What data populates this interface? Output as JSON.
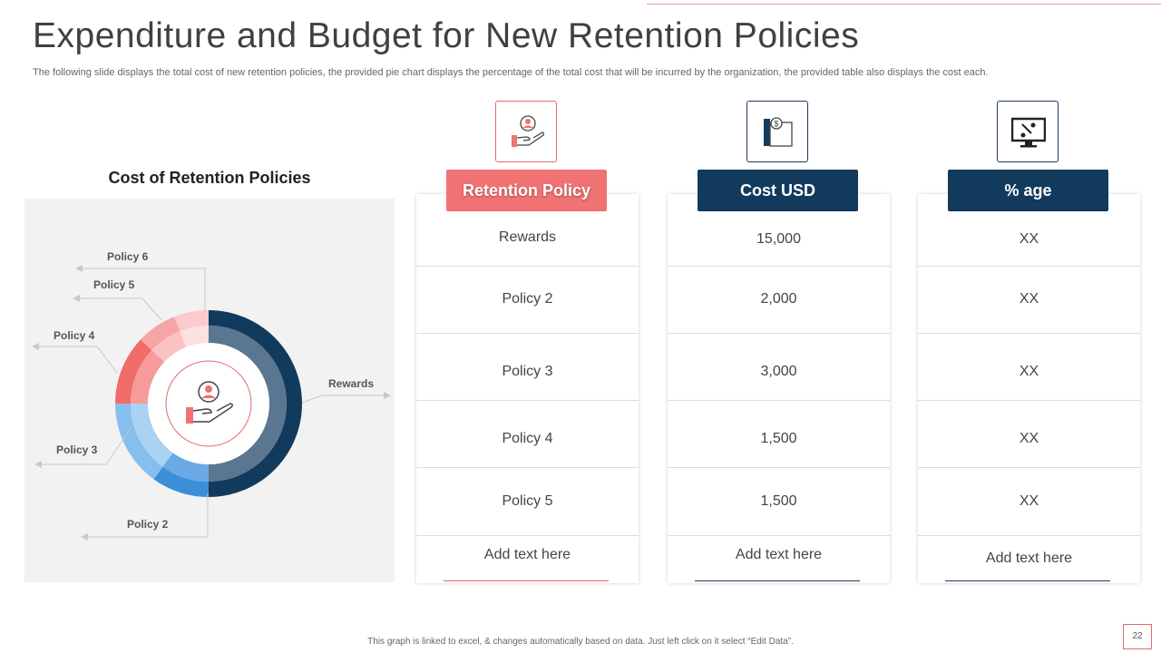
{
  "slide": {
    "title": "Expenditure and Budget for New Retention Policies",
    "subtitle": "The following slide displays the total cost of new retention policies, the provided pie chart displays the percentage of the total cost that will be incurred by the organization, the provided table also displays the cost each.",
    "footnote": "This graph is linked to excel, & changes automatically based on data. Just left click on it select “Edit Data”.",
    "page_number": "22"
  },
  "chart_data": {
    "type": "pie",
    "title": "Cost of Retention Policies",
    "center_icon": "hand-holding-person-icon",
    "slices": [
      {
        "label": "Rewards",
        "value": 50,
        "color": "#123a5d",
        "inner_color": "#5a7690"
      },
      {
        "label": "Policy 2",
        "value": 10,
        "color": "#3b8fd6",
        "inner_color": "#6aa9e6"
      },
      {
        "label": "Policy 3",
        "value": 15,
        "color": "#86bfee",
        "inner_color": "#a9d2f3"
      },
      {
        "label": "Policy 4",
        "value": 12,
        "color": "#f26b6b",
        "inner_color": "#f79a9a"
      },
      {
        "label": "Policy 5",
        "value": 7,
        "color": "#f6a5a5",
        "inner_color": "#fac2c2"
      },
      {
        "label": "Policy 6",
        "value": 6,
        "color": "#fbcaca",
        "inner_color": "#fde0e0"
      }
    ]
  },
  "table": {
    "icons": [
      "hand-holding-person-icon",
      "coin-book-icon",
      "monitor-chart-icon"
    ],
    "columns": [
      {
        "header": "Retention Policy",
        "cells": [
          "Rewards",
          "Policy 2",
          "Policy 3",
          "Policy 4",
          "Policy 5",
          "Add text here"
        ]
      },
      {
        "header": "Cost USD",
        "cells": [
          "15,000",
          "2,000",
          "3,000",
          "1,500",
          "1,500",
          "Add text here"
        ]
      },
      {
        "header": "% age",
        "cells": [
          "XX",
          "XX",
          "XX",
          "XX",
          "XX",
          "Add text here"
        ]
      }
    ]
  },
  "colors": {
    "accent_red": "#f07272",
    "navy": "#123a5d",
    "light_red": "#e26b6b"
  }
}
